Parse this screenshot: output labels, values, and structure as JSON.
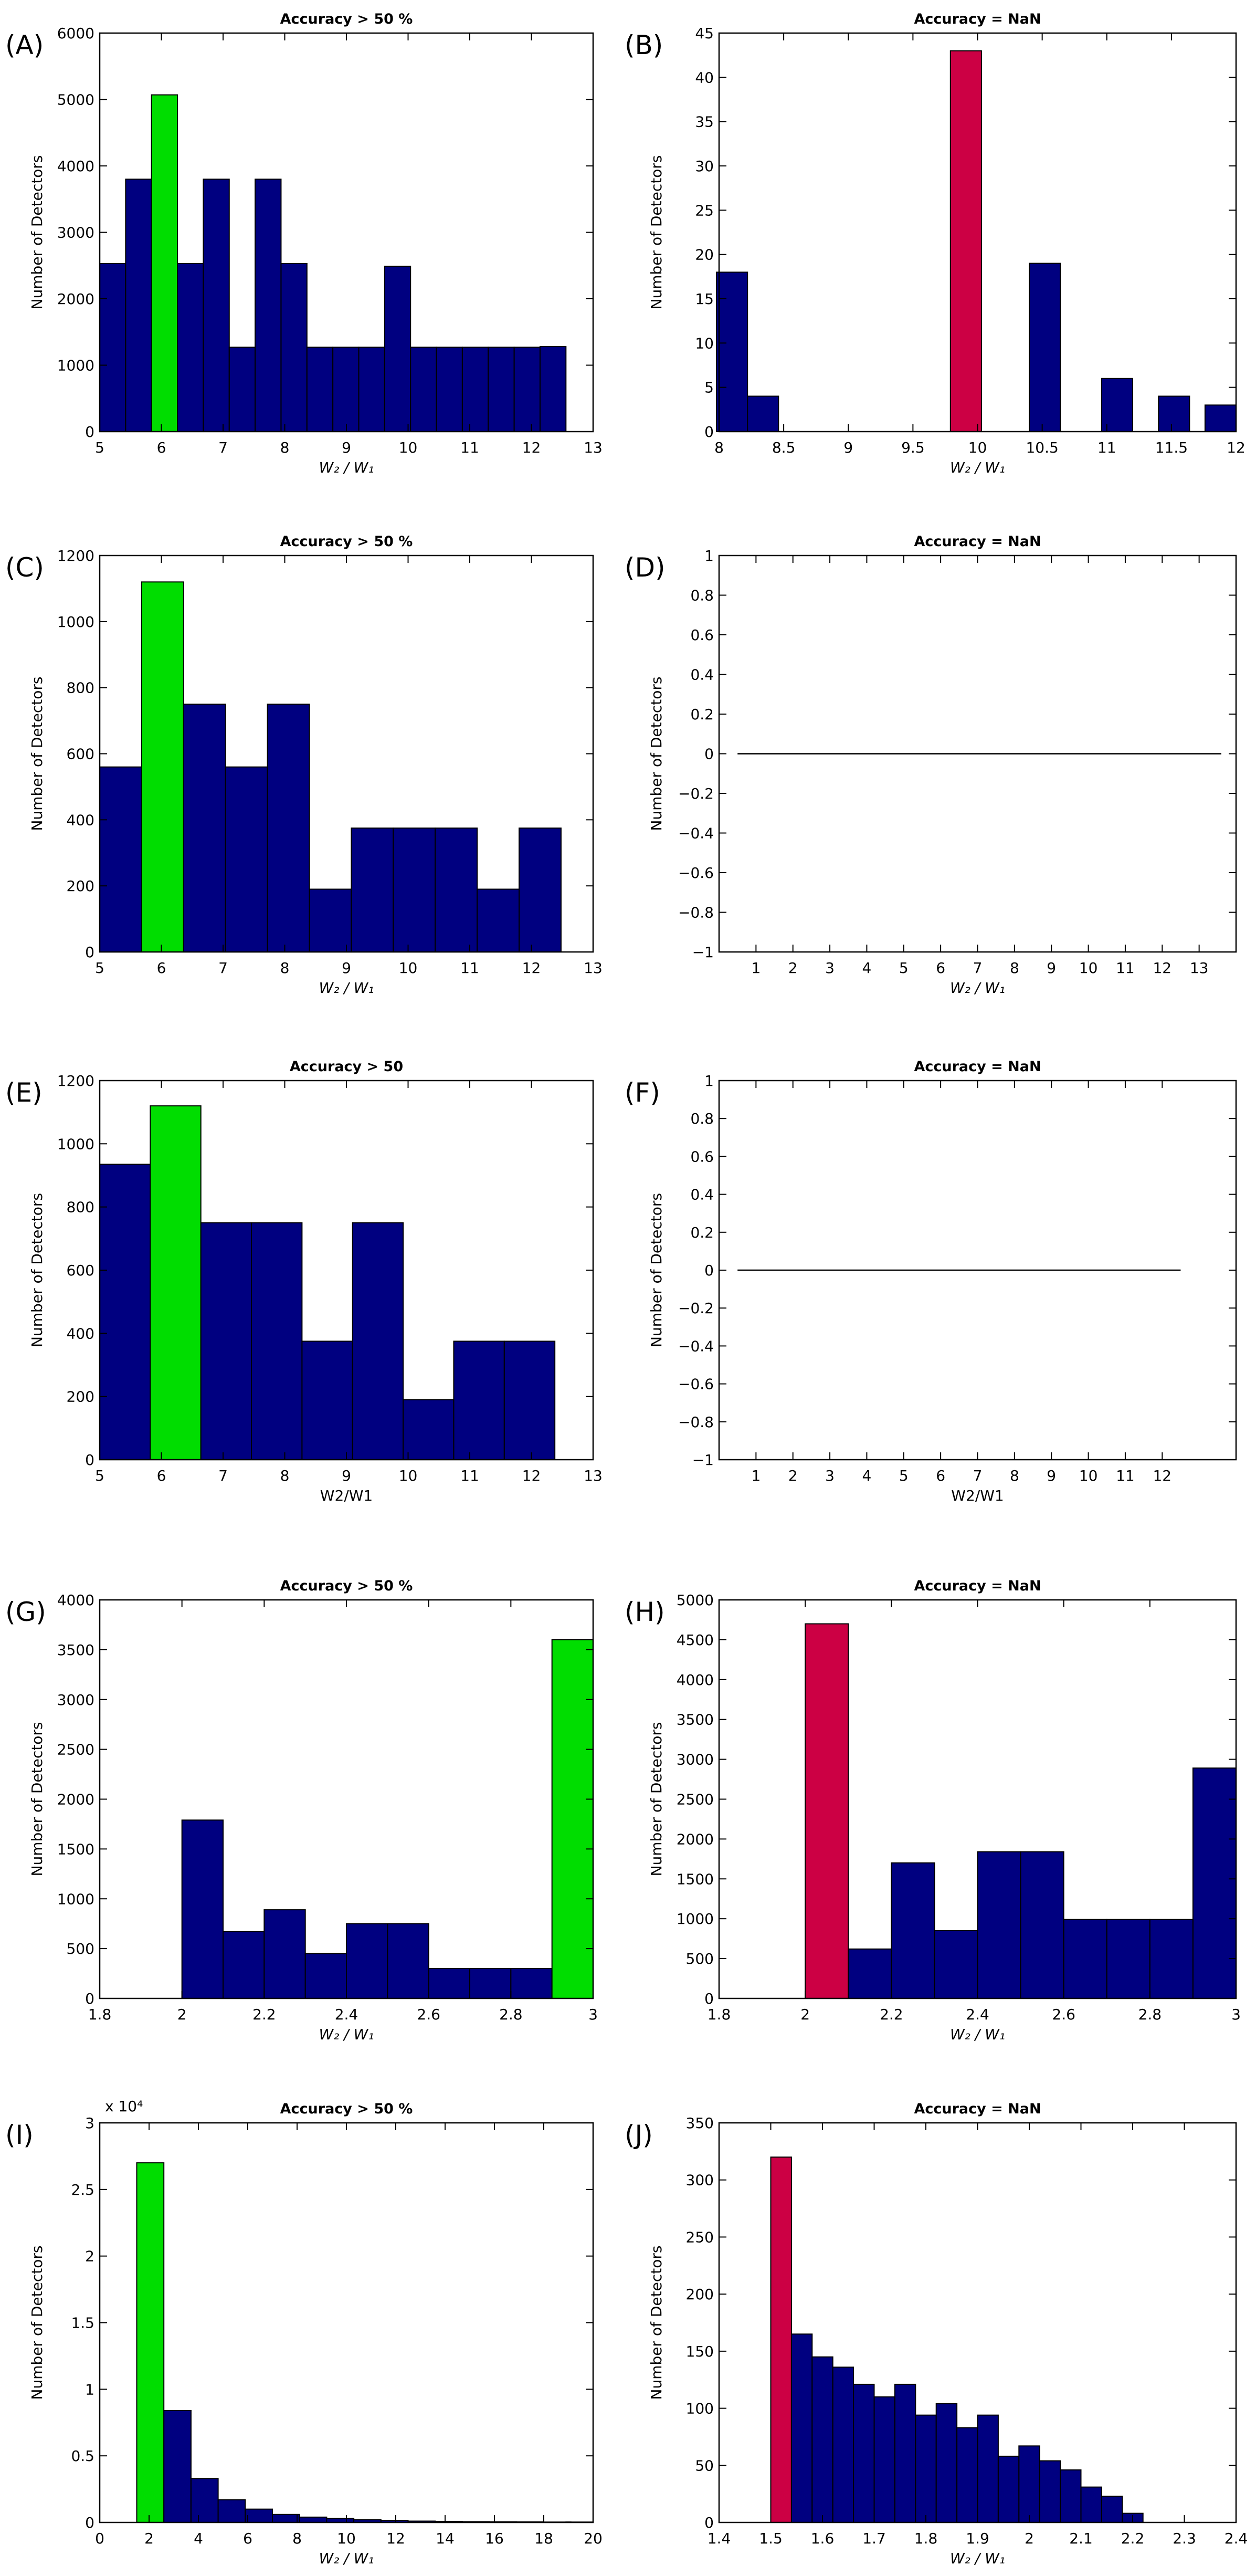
{
  "figure": {
    "description_colors": {
      "bar": "#000080",
      "highlight_green": "#00dd00",
      "highlight_red": "#cc0044",
      "axis": "#000000"
    }
  },
  "chart_data": [
    {
      "id": "A",
      "panel_label": "(A)",
      "type": "bar",
      "title": "Accuracy > 50 %",
      "xlabel": "W₂ / W₁",
      "ylabel": "Number of Detectors",
      "xlim": [
        5,
        13
      ],
      "ylim": [
        0,
        6000
      ],
      "xticks": [
        "5",
        "6",
        "7",
        "8",
        "9",
        "10",
        "11",
        "12",
        "13"
      ],
      "xtick_values": [
        5,
        6,
        7,
        8,
        9,
        10,
        11,
        12,
        13
      ],
      "yticks": [
        "0",
        "1000",
        "2000",
        "3000",
        "4000",
        "5000",
        "6000"
      ],
      "ytick_values": [
        0,
        1000,
        2000,
        3000,
        4000,
        5000,
        6000
      ],
      "bar_width": 0.42,
      "bars": [
        {
          "x": 5.21,
          "value": 2530
        },
        {
          "x": 5.63,
          "value": 3800
        },
        {
          "x": 6.05,
          "value": 5070,
          "highlight": "green"
        },
        {
          "x": 6.47,
          "value": 2530
        },
        {
          "x": 6.89,
          "value": 3800
        },
        {
          "x": 7.31,
          "value": 1270
        },
        {
          "x": 7.73,
          "value": 3800
        },
        {
          "x": 8.15,
          "value": 2530
        },
        {
          "x": 8.57,
          "value": 1270
        },
        {
          "x": 8.99,
          "value": 1270
        },
        {
          "x": 9.41,
          "value": 1270
        },
        {
          "x": 9.83,
          "value": 2490
        },
        {
          "x": 10.25,
          "value": 1270
        },
        {
          "x": 10.67,
          "value": 1270
        },
        {
          "x": 11.09,
          "value": 1270
        },
        {
          "x": 11.51,
          "value": 1270
        },
        {
          "x": 11.93,
          "value": 1270
        },
        {
          "x": 12.35,
          "value": 1280
        }
      ]
    },
    {
      "id": "B",
      "panel_label": "(B)",
      "type": "bar",
      "title": "Accuracy = NaN",
      "xlabel": "W₂ / W₁",
      "ylabel": "Number of Detectors",
      "xlim": [
        8,
        12
      ],
      "ylim": [
        0,
        45
      ],
      "xticks": [
        "8",
        "8.5",
        "9",
        "9.5",
        "10",
        "10.5",
        "11",
        "11.5",
        "12"
      ],
      "xtick_values": [
        8,
        8.5,
        9,
        9.5,
        10,
        10.5,
        11,
        11.5,
        12
      ],
      "yticks": [
        "0",
        "5",
        "10",
        "15",
        "20",
        "25",
        "30",
        "35",
        "40",
        "45"
      ],
      "ytick_values": [
        0,
        5,
        10,
        15,
        20,
        25,
        30,
        35,
        40,
        45
      ],
      "bar_width": 0.24,
      "bars": [
        {
          "x": 8.1,
          "value": 18
        },
        {
          "x": 8.34,
          "value": 4
        },
        {
          "x": 9.91,
          "value": 43,
          "highlight": "red"
        },
        {
          "x": 10.52,
          "value": 19
        },
        {
          "x": 11.08,
          "value": 6
        },
        {
          "x": 11.52,
          "value": 4
        },
        {
          "x": 11.88,
          "value": 3
        }
      ]
    },
    {
      "id": "C",
      "panel_label": "(C)",
      "type": "bar",
      "title": "Accuracy > 50 %",
      "xlabel": "W₂ / W₁",
      "ylabel": "Number of Detectors",
      "xlim": [
        5,
        13
      ],
      "ylim": [
        0,
        1200
      ],
      "xticks": [
        "5",
        "6",
        "7",
        "8",
        "9",
        "10",
        "11",
        "12",
        "13"
      ],
      "xtick_values": [
        5,
        6,
        7,
        8,
        9,
        10,
        11,
        12,
        13
      ],
      "yticks": [
        "0",
        "200",
        "400",
        "600",
        "800",
        "1000",
        "1200"
      ],
      "ytick_values": [
        0,
        200,
        400,
        600,
        800,
        1000,
        1200
      ],
      "bar_width": 0.68,
      "bars": [
        {
          "x": 5.34,
          "value": 560
        },
        {
          "x": 6.02,
          "value": 1120,
          "highlight": "green"
        },
        {
          "x": 6.7,
          "value": 750
        },
        {
          "x": 7.38,
          "value": 560
        },
        {
          "x": 8.06,
          "value": 750
        },
        {
          "x": 8.74,
          "value": 190
        },
        {
          "x": 9.42,
          "value": 375
        },
        {
          "x": 10.1,
          "value": 375
        },
        {
          "x": 10.78,
          "value": 375
        },
        {
          "x": 11.46,
          "value": 190
        },
        {
          "x": 12.14,
          "value": 375
        }
      ]
    },
    {
      "id": "D",
      "panel_label": "(D)",
      "type": "line",
      "title": "Accuracy = NaN",
      "xlabel": "W₂ / W₁",
      "ylabel": "Number of Detectors",
      "xlim": [
        0,
        14
      ],
      "ylim": [
        -1,
        1
      ],
      "xticks": [
        "1",
        "2",
        "3",
        "4",
        "5",
        "6",
        "7",
        "8",
        "9",
        "10",
        "11",
        "12",
        "13"
      ],
      "xtick_values": [
        1,
        2,
        3,
        4,
        5,
        6,
        7,
        8,
        9,
        10,
        11,
        12,
        13
      ],
      "yticks": [
        "−1",
        "−0.8",
        "−0.6",
        "−0.4",
        "−0.2",
        "0",
        "0.2",
        "0.4",
        "0.6",
        "0.8",
        "1"
      ],
      "ytick_values": [
        -1,
        -0.8,
        -0.6,
        -0.4,
        -0.2,
        0,
        0.2,
        0.4,
        0.6,
        0.8,
        1
      ],
      "line": {
        "x": [
          0.5,
          13.6
        ],
        "y": [
          0,
          0
        ]
      }
    },
    {
      "id": "E",
      "panel_label": "(E)",
      "type": "bar",
      "title": "Accuracy > 50",
      "xlabel": "W2/W1",
      "ylabel": "Number of Detectors",
      "xlim": [
        5,
        13
      ],
      "ylim": [
        0,
        1200
      ],
      "xticks": [
        "5",
        "6",
        "7",
        "8",
        "9",
        "10",
        "11",
        "12",
        "13"
      ],
      "xtick_values": [
        5,
        6,
        7,
        8,
        9,
        10,
        11,
        12,
        13
      ],
      "yticks": [
        "0",
        "200",
        "400",
        "600",
        "800",
        "1000",
        "1200"
      ],
      "ytick_values": [
        0,
        200,
        400,
        600,
        800,
        1000,
        1200
      ],
      "bar_width": 0.82,
      "bars": [
        {
          "x": 5.41,
          "value": 935
        },
        {
          "x": 6.23,
          "value": 1120,
          "highlight": "green"
        },
        {
          "x": 7.05,
          "value": 750
        },
        {
          "x": 7.87,
          "value": 750
        },
        {
          "x": 8.69,
          "value": 375
        },
        {
          "x": 9.51,
          "value": 750
        },
        {
          "x": 10.33,
          "value": 190
        },
        {
          "x": 11.15,
          "value": 375
        },
        {
          "x": 11.97,
          "value": 375
        }
      ]
    },
    {
      "id": "F",
      "panel_label": "(F)",
      "type": "line",
      "title": "Accuracy = NaN",
      "xlabel": "W2/W1",
      "ylabel": "Number of Detectors",
      "xlim": [
        0,
        14
      ],
      "ylim": [
        -1,
        1
      ],
      "xticks": [
        "1",
        "2",
        "3",
        "4",
        "5",
        "6",
        "7",
        "8",
        "9",
        "10",
        "11",
        "12"
      ],
      "xtick_values": [
        1,
        2,
        3,
        4,
        5,
        6,
        7,
        8,
        9,
        10,
        11,
        12
      ],
      "yticks": [
        "−1",
        "−0.8",
        "−0.6",
        "−0.4",
        "−0.2",
        "0",
        "0.2",
        "0.4",
        "0.6",
        "0.8",
        "1"
      ],
      "ytick_values": [
        -1,
        -0.8,
        -0.6,
        -0.4,
        -0.2,
        0,
        0.2,
        0.4,
        0.6,
        0.8,
        1
      ],
      "line": {
        "x": [
          0.5,
          12.5
        ],
        "y": [
          0,
          0
        ]
      }
    },
    {
      "id": "G",
      "panel_label": "(G)",
      "type": "bar",
      "title": "Accuracy > 50 %",
      "xlabel": "W₂ / W₁",
      "ylabel": "Number of Detectors",
      "xlim": [
        1.8,
        3
      ],
      "ylim": [
        0,
        4000
      ],
      "xticks": [
        "1.8",
        "2",
        "2.2",
        "2.4",
        "2.6",
        "2.8",
        "3"
      ],
      "xtick_values": [
        1.8,
        2,
        2.2,
        2.4,
        2.6,
        2.8,
        3
      ],
      "yticks": [
        "0",
        "500",
        "1000",
        "1500",
        "2000",
        "2500",
        "3000",
        "3500",
        "4000"
      ],
      "ytick_values": [
        0,
        500,
        1000,
        1500,
        2000,
        2500,
        3000,
        3500,
        4000
      ],
      "bar_width": 0.1,
      "bars": [
        {
          "x": 2.05,
          "value": 1790
        },
        {
          "x": 2.15,
          "value": 670
        },
        {
          "x": 2.25,
          "value": 890
        },
        {
          "x": 2.35,
          "value": 450
        },
        {
          "x": 2.45,
          "value": 750
        },
        {
          "x": 2.55,
          "value": 750
        },
        {
          "x": 2.65,
          "value": 300
        },
        {
          "x": 2.75,
          "value": 300
        },
        {
          "x": 2.85,
          "value": 300
        },
        {
          "x": 2.95,
          "value": 3600,
          "highlight": "green"
        }
      ]
    },
    {
      "id": "H",
      "panel_label": "(H)",
      "type": "bar",
      "title": "Accuracy = NaN",
      "xlabel": "W₂ / W₁",
      "ylabel": "Number of Detectors",
      "xlim": [
        1.8,
        3
      ],
      "ylim": [
        0,
        5000
      ],
      "xticks": [
        "1.8",
        "2",
        "2.2",
        "2.4",
        "2.6",
        "2.8",
        "3"
      ],
      "xtick_values": [
        1.8,
        2,
        2.2,
        2.4,
        2.6,
        2.8,
        3
      ],
      "yticks": [
        "0",
        "500",
        "1000",
        "1500",
        "2000",
        "2500",
        "3000",
        "3500",
        "4000",
        "4500",
        "5000"
      ],
      "ytick_values": [
        0,
        500,
        1000,
        1500,
        2000,
        2500,
        3000,
        3500,
        4000,
        4500,
        5000
      ],
      "bar_width": 0.1,
      "bars": [
        {
          "x": 2.05,
          "value": 4700,
          "highlight": "red"
        },
        {
          "x": 2.15,
          "value": 620
        },
        {
          "x": 2.25,
          "value": 1700
        },
        {
          "x": 2.35,
          "value": 850
        },
        {
          "x": 2.45,
          "value": 1840
        },
        {
          "x": 2.55,
          "value": 1840
        },
        {
          "x": 2.65,
          "value": 990
        },
        {
          "x": 2.75,
          "value": 990
        },
        {
          "x": 2.85,
          "value": 990
        },
        {
          "x": 2.95,
          "value": 2890
        }
      ]
    },
    {
      "id": "I",
      "panel_label": "(I)",
      "type": "bar",
      "title": "Accuracy > 50 %",
      "xlabel": "W₂ / W₁",
      "ylabel": "Number of Detectors",
      "multiplier_label": "x 10⁴",
      "xlim": [
        0,
        20
      ],
      "ylim": [
        0,
        3
      ],
      "xticks": [
        "0",
        "2",
        "4",
        "6",
        "8",
        "10",
        "12",
        "14",
        "16",
        "18",
        "20"
      ],
      "xtick_values": [
        0,
        2,
        4,
        6,
        8,
        10,
        12,
        14,
        16,
        18,
        20
      ],
      "yticks": [
        "0",
        "0.5",
        "1",
        "1.5",
        "2",
        "2.5",
        "3"
      ],
      "ytick_values": [
        0,
        0.5,
        1,
        1.5,
        2,
        2.5,
        3
      ],
      "bar_width": 1.1,
      "bars": [
        {
          "x": 2.05,
          "value": 2.7,
          "highlight": "green"
        },
        {
          "x": 3.15,
          "value": 0.84
        },
        {
          "x": 4.25,
          "value": 0.33
        },
        {
          "x": 5.35,
          "value": 0.17
        },
        {
          "x": 6.45,
          "value": 0.1
        },
        {
          "x": 7.55,
          "value": 0.06
        },
        {
          "x": 8.65,
          "value": 0.04
        },
        {
          "x": 9.75,
          "value": 0.03
        },
        {
          "x": 10.85,
          "value": 0.02
        },
        {
          "x": 11.95,
          "value": 0.015
        },
        {
          "x": 13.05,
          "value": 0.01
        },
        {
          "x": 14.15,
          "value": 0.008
        },
        {
          "x": 15.25,
          "value": 0.006
        },
        {
          "x": 16.35,
          "value": 0.005
        },
        {
          "x": 17.45,
          "value": 0.004
        },
        {
          "x": 18.55,
          "value": 0.003
        },
        {
          "x": 19.45,
          "value": 0.003
        }
      ]
    },
    {
      "id": "J",
      "panel_label": "(J)",
      "type": "bar",
      "title": "Accuracy = NaN",
      "xlabel": "W₂ / W₁",
      "ylabel": "Number of Detectors",
      "xlim": [
        1.4,
        2.4
      ],
      "ylim": [
        0,
        350
      ],
      "xticks": [
        "1.4",
        "1.5",
        "1.6",
        "1.7",
        "1.8",
        "1.9",
        "2",
        "2.1",
        "2.2",
        "2.3",
        "2.4"
      ],
      "xtick_values": [
        1.4,
        1.5,
        1.6,
        1.7,
        1.8,
        1.9,
        2,
        2.1,
        2.2,
        2.3,
        2.4
      ],
      "yticks": [
        "0",
        "50",
        "100",
        "150",
        "200",
        "250",
        "300",
        "350"
      ],
      "ytick_values": [
        0,
        50,
        100,
        150,
        200,
        250,
        300,
        350
      ],
      "bar_width": 0.04,
      "bars": [
        {
          "x": 1.52,
          "value": 320,
          "highlight": "red"
        },
        {
          "x": 1.56,
          "value": 165
        },
        {
          "x": 1.6,
          "value": 145
        },
        {
          "x": 1.64,
          "value": 136
        },
        {
          "x": 1.68,
          "value": 121
        },
        {
          "x": 1.72,
          "value": 110
        },
        {
          "x": 1.76,
          "value": 121
        },
        {
          "x": 1.8,
          "value": 94
        },
        {
          "x": 1.84,
          "value": 104
        },
        {
          "x": 1.88,
          "value": 83
        },
        {
          "x": 1.92,
          "value": 94
        },
        {
          "x": 1.96,
          "value": 58
        },
        {
          "x": 2,
          "value": 67
        },
        {
          "x": 2.04,
          "value": 54
        },
        {
          "x": 2.08,
          "value": 46
        },
        {
          "x": 2.12,
          "value": 31
        },
        {
          "x": 2.16,
          "value": 23
        },
        {
          "x": 2.2,
          "value": 8
        }
      ]
    }
  ]
}
